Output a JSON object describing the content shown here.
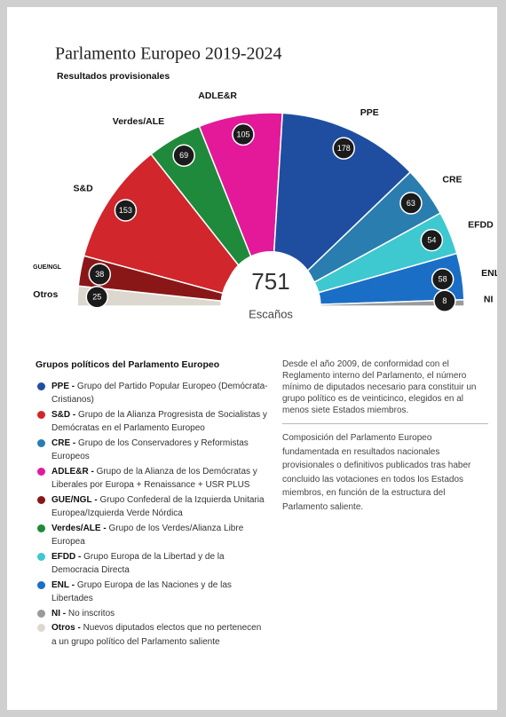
{
  "chart_data": {
    "type": "semicircle",
    "title": "Parlamento Europeo 2019-2024",
    "subtitle": "Resultados provisionales",
    "total": 751,
    "total_label": "Escaños",
    "categories": [
      "Otros",
      "GUE/NGL",
      "S&D",
      "Verdes/ALE",
      "ADLE&R",
      "PPE",
      "CRE",
      "EFDD",
      "ENL",
      "NI"
    ],
    "values": [
      25,
      38,
      153,
      69,
      105,
      178,
      63,
      54,
      58,
      8
    ],
    "colors": [
      "#dcd8cf",
      "#8a1717",
      "#d1262b",
      "#1f8a3b",
      "#e3199a",
      "#1f4ea1",
      "#2a7daf",
      "#3ec8cf",
      "#1a6ec6",
      "#9a9a9a"
    ],
    "legend_title": "Grupos políticos del Parlamento Europeo",
    "legend": [
      {
        "name": "PPE",
        "description": "Grupo del Partido Popular Europeo (Demócrata-Cristianos)"
      },
      {
        "name": "S&D",
        "description": "Grupo de la Alianza Progresista de Socialistas y Demócratas en el Parlamento Europeo"
      },
      {
        "name": "CRE",
        "description": "Grupo de los Conservadores y Reformistas Europeos"
      },
      {
        "name": "ADLE&R",
        "description": "Grupo de la Alianza de los Demócratas y Liberales por Europa + Renaissance + USR PLUS"
      },
      {
        "name": "GUE/NGL",
        "description": "Grupo Confederal de la Izquierda Unitaria Europea/Izquierda Verde Nórdica"
      },
      {
        "name": "Verdes/ALE",
        "description": "Grupo de los Verdes/Alianza Libre Europea"
      },
      {
        "name": "EFDD",
        "description": "Grupo Europa de la Libertad y de la Democracia Directa"
      },
      {
        "name": "ENL",
        "description": "Grupo Europa de las Naciones y de las Libertades"
      },
      {
        "name": "NI",
        "description": "No inscritos"
      },
      {
        "name": "Otros",
        "description": "Nuevos diputados electos que no pertenecen a un grupo político del Parlamento saliente"
      }
    ],
    "notes": [
      "Desde el año 2009, de conformidad con el Reglamento interno del Parlamento, el número mínimo de diputados necesario para constituir un grupo político es de veinticinco, elegidos en al menos siete Estados miembros.",
      "Composición del Parlamento Europeo fundamentada en resultados nacionales provisionales o definitivos publicados tras haber concluido las votaciones en todos los Estados miembros, en función de la estructura del Parlamento saliente."
    ]
  }
}
